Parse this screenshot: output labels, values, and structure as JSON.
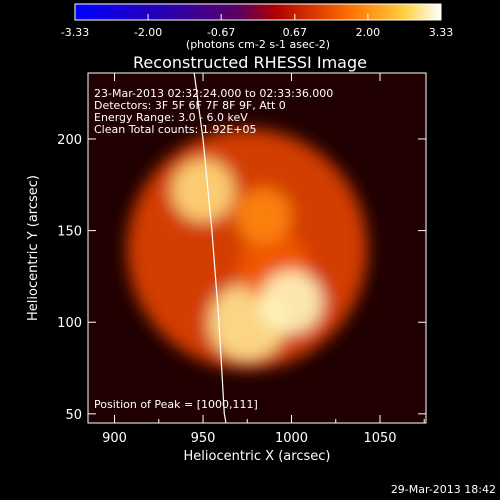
{
  "chart_data": {
    "type": "heatmap",
    "title": "Reconstructed RHESSI Image",
    "xlabel": "Heliocentric X (arcsec)",
    "ylabel": "Heliocentric Y (arcsec)",
    "xlim": [
      885,
      1076
    ],
    "ylim": [
      45,
      236
    ],
    "x_ticks": [
      900,
      950,
      1000,
      1050
    ],
    "y_ticks": [
      50,
      100,
      150,
      200
    ],
    "colorbar": {
      "range": [
        -3.33,
        3.33
      ],
      "ticks": [
        "-3.33",
        "-2.00",
        "-0.67",
        "0.67",
        "2.00",
        "3.33"
      ],
      "unit_label": "(photons cm-2 s-1 asec-2)"
    },
    "annotations": [
      "23-Mar-2013 02:32:24.000 to 02:33:36.000",
      "Detectors: 3F 5F 6F 7F 8F 9F, Att 0",
      "Energy Range: 3.0 - 6.0 keV",
      "Clean    Total counts: 1.92E+05"
    ],
    "peak_label": "Position of Peak = [1000,111]",
    "peak": {
      "x": 1000,
      "y": 111
    },
    "sources": [
      {
        "x": 950,
        "y": 172,
        "sigma": 9,
        "value": 3.0
      },
      {
        "x": 984,
        "y": 158,
        "sigma": 8,
        "value": 2.2
      },
      {
        "x": 1000,
        "y": 111,
        "sigma": 9,
        "value": 3.3
      },
      {
        "x": 975,
        "y": 100,
        "sigma": 11,
        "value": 3.1
      },
      {
        "x": 990,
        "y": 130,
        "sigma": 10,
        "value": 1.8
      },
      {
        "x": 975,
        "y": 140,
        "sigma": 34,
        "value": 1.6
      }
    ],
    "limb_arc": [
      [
        945,
        236
      ],
      [
        950,
        200
      ],
      [
        955,
        150
      ],
      [
        959,
        100
      ],
      [
        962,
        50
      ],
      [
        963,
        45
      ]
    ],
    "timestamp": "29-Mar-2013 18:42"
  }
}
